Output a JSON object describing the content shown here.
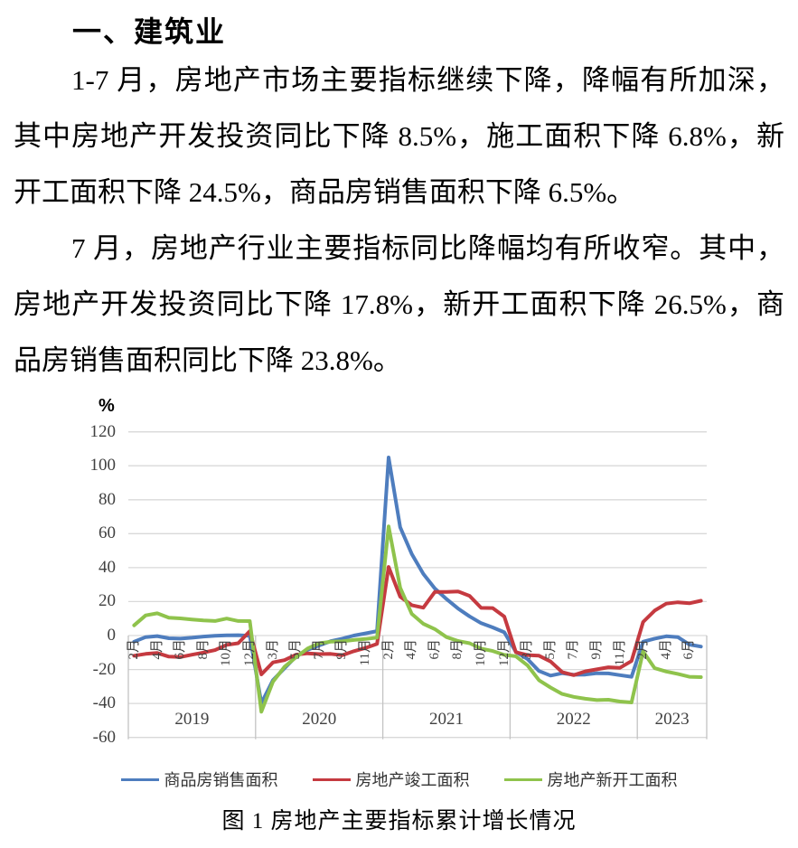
{
  "document": {
    "heading": "一、建筑业",
    "p1_lines": [
      "1-7 月，房地产市场主要指标继续下降，降幅有所加深，",
      "其中房地产开发投资同比下降 8.5%，施工面积下降 6.8%，新",
      "开工面积下降 24.5%，商品房销售面积下降 6.5%。"
    ],
    "p2_lines": [
      "7 月，房地产行业主要指标同比降幅均有所收窄。其中，",
      "房地产开发投资同比下降 17.8%，新开工面积下降 26.5%，商",
      "品房销售面积同比下降 23.8%。"
    ],
    "caption": "图 1 房地产主要指标累计增长情况"
  },
  "chart_data": {
    "type": "line",
    "title": "图 1 房地产主要指标累计增长情况",
    "unit_label": "%",
    "ylim": [
      -60,
      120
    ],
    "yticks": [
      120,
      100,
      80,
      60,
      40,
      20,
      0,
      -20,
      -40,
      -60
    ],
    "grid": "horizontal",
    "legend_position": "bottom",
    "x_year_groups": [
      {
        "label": "2019",
        "count": 11
      },
      {
        "label": "2020",
        "count": 11
      },
      {
        "label": "2021",
        "count": 11
      },
      {
        "label": "2022",
        "count": 11
      },
      {
        "label": "2023",
        "count": 6
      }
    ],
    "x_month_ticks": [
      {
        "i": 0,
        "label": "2月"
      },
      {
        "i": 2,
        "label": "4月"
      },
      {
        "i": 4,
        "label": "6月"
      },
      {
        "i": 6,
        "label": "8月"
      },
      {
        "i": 8,
        "label": "10月"
      },
      {
        "i": 10,
        "label": "12月"
      },
      {
        "i": 12,
        "label": "3月"
      },
      {
        "i": 14,
        "label": "5月"
      },
      {
        "i": 16,
        "label": "7月"
      },
      {
        "i": 18,
        "label": "9月"
      },
      {
        "i": 20,
        "label": "11月"
      },
      {
        "i": 22,
        "label": "2月"
      },
      {
        "i": 24,
        "label": "4月"
      },
      {
        "i": 26,
        "label": "6月"
      },
      {
        "i": 28,
        "label": "8月"
      },
      {
        "i": 30,
        "label": "10月"
      },
      {
        "i": 32,
        "label": "12月"
      },
      {
        "i": 34,
        "label": "3月"
      },
      {
        "i": 36,
        "label": "5月"
      },
      {
        "i": 38,
        "label": "7月"
      },
      {
        "i": 40,
        "label": "9月"
      },
      {
        "i": 42,
        "label": "11月"
      },
      {
        "i": 44,
        "label": "2月"
      },
      {
        "i": 46,
        "label": "4月"
      },
      {
        "i": 48,
        "label": "6月"
      }
    ],
    "series": [
      {
        "name": "商品房销售面积",
        "color": "#4E7DBE",
        "values": [
          -3.6,
          -0.9,
          -0.3,
          -1.6,
          -1.8,
          -1.3,
          -0.6,
          -0.1,
          0.1,
          0.2,
          -0.1,
          -39.9,
          -26.3,
          -19.3,
          -12.3,
          -8.4,
          -5.8,
          -3.3,
          -1.8,
          0.0,
          1.3,
          2.6,
          104.9,
          63.8,
          48.1,
          36.3,
          27.7,
          21.5,
          15.9,
          11.3,
          7.3,
          4.8,
          1.9,
          -9.6,
          -13.8,
          -20.9,
          -23.6,
          -22.2,
          -23.1,
          -23.0,
          -22.2,
          -22.3,
          -23.3,
          -24.3,
          -3.6,
          -1.8,
          -0.4,
          -0.9,
          -5.3,
          -6.5
        ]
      },
      {
        "name": "房地产竣工面积",
        "color": "#C53A40",
        "values": [
          -11.9,
          -10.8,
          -10.3,
          -12.4,
          -12.7,
          -11.3,
          -10.0,
          -8.6,
          -5.5,
          -4.5,
          2.6,
          -22.9,
          -15.8,
          -14.5,
          -11.3,
          -10.5,
          -10.9,
          -10.8,
          -11.6,
          -9.2,
          -7.3,
          -4.9,
          40.4,
          22.9,
          17.9,
          16.4,
          25.7,
          25.7,
          26.0,
          23.4,
          16.3,
          16.2,
          11.2,
          -9.8,
          -11.5,
          -11.9,
          -15.3,
          -21.5,
          -23.3,
          -21.1,
          -19.9,
          -18.7,
          -19.0,
          -15.0,
          8.0,
          14.7,
          18.8,
          19.6,
          19.0,
          20.5
        ]
      },
      {
        "name": "房地产新开工面积",
        "color": "#8FC34C",
        "values": [
          6.0,
          11.9,
          13.1,
          10.5,
          10.1,
          9.5,
          8.9,
          8.6,
          10.0,
          8.6,
          8.5,
          -44.9,
          -27.2,
          -18.4,
          -12.8,
          -7.6,
          -4.5,
          -3.6,
          -3.4,
          -2.6,
          -2.0,
          -1.2,
          64.3,
          28.2,
          12.8,
          6.9,
          3.8,
          -0.9,
          -3.2,
          -4.5,
          -7.7,
          -9.1,
          -11.4,
          -12.2,
          -17.5,
          -26.3,
          -30.6,
          -34.4,
          -36.1,
          -37.2,
          -38.0,
          -37.8,
          -38.9,
          -39.4,
          -9.4,
          -19.2,
          -21.2,
          -22.6,
          -24.3,
          -24.5
        ]
      }
    ],
    "colors": {
      "gridline": "#d9d9d9",
      "divider": "#c3c3c3",
      "tick_text": "#404040"
    }
  }
}
